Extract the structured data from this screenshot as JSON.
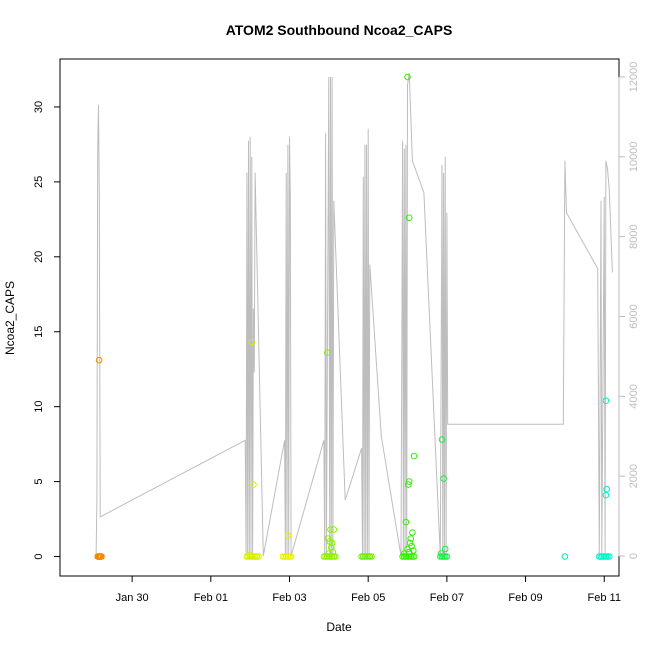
{
  "chart_data": {
    "type": "scatter",
    "title": "ATOM2 Southbound Ncoa2_CAPS",
    "xlabel": "Date",
    "ylabel": "Ncoa2_CAPS",
    "xlim": [
      "2017-01-28T04:00",
      "2017-02-11T09:00"
    ],
    "ylim": [
      -1.3,
      33.2
    ],
    "y2lim": [
      -500,
      12450
    ],
    "x_ticks": [
      {
        "date": "2017-01-30",
        "label": "Jan 30"
      },
      {
        "date": "2017-02-01",
        "label": "Feb 01"
      },
      {
        "date": "2017-02-03",
        "label": "Feb 03"
      },
      {
        "date": "2017-02-05",
        "label": "Feb 05"
      },
      {
        "date": "2017-02-07",
        "label": "Feb 07"
      },
      {
        "date": "2017-02-09",
        "label": "Feb 09"
      },
      {
        "date": "2017-02-11",
        "label": "Feb 11"
      }
    ],
    "y_ticks": [
      0,
      5,
      10,
      15,
      20,
      25,
      30
    ],
    "y2_ticks": [
      0,
      2000,
      4000,
      6000,
      8000,
      10000,
      12000
    ],
    "colors": {
      "secondary_line": "#bdbdbd",
      "jan29": "#f08c00",
      "feb01": "#d6f000",
      "feb02": "#e8f000",
      "feb03": "#8cf000",
      "feb04": "#6cf000",
      "feb05": "#33f000",
      "feb06": "#18f040",
      "feb10": "#00f0a0",
      "feb11": "#00f0c8"
    },
    "secondary_series": [
      [
        "2017-01-29T02:00",
        0
      ],
      [
        "2017-01-29T02:30",
        1400
      ],
      [
        "2017-01-29T03:00",
        10200
      ],
      [
        "2017-01-29T03:30",
        11300
      ],
      [
        "2017-01-29T04:00",
        9000
      ],
      [
        "2017-01-29T04:30",
        980
      ],
      [
        "2017-02-01T21:00",
        2900
      ],
      [
        "2017-02-01T21:30",
        0
      ],
      [
        "2017-02-01T22:00",
        9600
      ],
      [
        "2017-02-01T22:30",
        0
      ],
      [
        "2017-02-01T23:00",
        10400
      ],
      [
        "2017-02-01T23:30",
        0
      ],
      [
        "2017-02-02T00:00",
        10500
      ],
      [
        "2017-02-02T00:30",
        0
      ],
      [
        "2017-02-02T01:00",
        10000
      ],
      [
        "2017-02-02T01:30",
        0
      ],
      [
        "2017-02-02T02:00",
        6200
      ],
      [
        "2017-02-02T02:30",
        4600
      ],
      [
        "2017-02-02T03:00",
        9600
      ],
      [
        "2017-02-02T08:00",
        0
      ],
      [
        "2017-02-02T21:00",
        2900
      ],
      [
        "2017-02-02T21:30",
        0
      ],
      [
        "2017-02-02T22:00",
        9600
      ],
      [
        "2017-02-02T22:30",
        0
      ],
      [
        "2017-02-02T23:00",
        10300
      ],
      [
        "2017-02-02T23:30",
        0
      ],
      [
        "2017-02-03T00:00",
        10500
      ],
      [
        "2017-02-03T00:30",
        9000
      ],
      [
        "2017-02-03T01:00",
        0
      ],
      [
        "2017-02-03T21:00",
        2900
      ],
      [
        "2017-02-03T21:30",
        0
      ],
      [
        "2017-02-03T22:00",
        10600
      ],
      [
        "2017-02-03T22:30",
        0
      ],
      [
        "2017-02-04T00:00",
        12000
      ],
      [
        "2017-02-04T00:30",
        0
      ],
      [
        "2017-02-04T01:00",
        12000
      ],
      [
        "2017-02-04T01:30",
        0
      ],
      [
        "2017-02-04T02:00",
        12000
      ],
      [
        "2017-02-04T02:30",
        0
      ],
      [
        "2017-02-04T03:00",
        8900
      ],
      [
        "2017-02-04T10:00",
        1400
      ],
      [
        "2017-02-04T20:00",
        2700
      ],
      [
        "2017-02-04T20:30",
        0
      ],
      [
        "2017-02-04T21:00",
        9500
      ],
      [
        "2017-02-04T21:30",
        0
      ],
      [
        "2017-02-04T22:00",
        10300
      ],
      [
        "2017-02-04T22:30",
        0
      ],
      [
        "2017-02-04T23:00",
        10300
      ],
      [
        "2017-02-04T23:30",
        0
      ],
      [
        "2017-02-05T00:00",
        10700
      ],
      [
        "2017-02-05T00:30",
        0
      ],
      [
        "2017-02-05T01:00",
        7300
      ],
      [
        "2017-02-05T08:00",
        3000
      ],
      [
        "2017-02-05T20:00",
        0
      ],
      [
        "2017-02-05T21:00",
        10400
      ],
      [
        "2017-02-05T21:30",
        0
      ],
      [
        "2017-02-05T22:00",
        10200
      ],
      [
        "2017-02-05T22:30",
        0
      ],
      [
        "2017-02-05T23:00",
        10300
      ],
      [
        "2017-02-05T23:30",
        0
      ],
      [
        "2017-02-06T00:00",
        11800
      ],
      [
        "2017-02-06T01:00",
        12100
      ],
      [
        "2017-02-06T02:00",
        11000
      ],
      [
        "2017-02-06T03:00",
        9900
      ],
      [
        "2017-02-06T10:00",
        9100
      ],
      [
        "2017-02-06T20:00",
        0
      ],
      [
        "2017-02-06T21:00",
        9800
      ],
      [
        "2017-02-06T21:30",
        0
      ],
      [
        "2017-02-06T22:00",
        9600
      ],
      [
        "2017-02-06T22:30",
        0
      ],
      [
        "2017-02-06T23:00",
        10000
      ],
      [
        "2017-02-06T23:30",
        0
      ],
      [
        "2017-02-07T00:00",
        8600
      ],
      [
        "2017-02-07T00:30",
        3300
      ],
      [
        "2017-02-09T23:00",
        3300
      ],
      [
        "2017-02-10T00:00",
        9900
      ],
      [
        "2017-02-10T01:00",
        8600
      ],
      [
        "2017-02-10T20:00",
        7200
      ],
      [
        "2017-02-10T21:00",
        0
      ],
      [
        "2017-02-10T22:00",
        8900
      ],
      [
        "2017-02-10T22:30",
        0
      ],
      [
        "2017-02-11T00:00",
        9000
      ],
      [
        "2017-02-11T00:30",
        0
      ],
      [
        "2017-02-11T01:00",
        9900
      ],
      [
        "2017-02-11T02:00",
        9700
      ],
      [
        "2017-02-11T03:00",
        9200
      ],
      [
        "2017-02-11T05:00",
        7100
      ]
    ],
    "series": [
      {
        "color_key": "jan29",
        "points": [
          [
            "2017-01-29T03:00",
            0
          ],
          [
            "2017-01-29T03:20",
            0
          ],
          [
            "2017-01-29T03:40",
            0
          ],
          [
            "2017-01-29T04:00",
            0
          ],
          [
            "2017-01-29T04:20",
            0
          ],
          [
            "2017-01-29T04:40",
            0
          ],
          [
            "2017-01-29T05:00",
            0
          ],
          [
            "2017-01-29T05:20",
            0
          ],
          [
            "2017-01-29T03:50",
            13.1
          ]
        ]
      },
      {
        "color_key": "feb01",
        "points": [
          [
            "2017-02-01T22:00",
            0
          ],
          [
            "2017-02-01T23:00",
            0
          ],
          [
            "2017-02-02T00:00",
            0
          ],
          [
            "2017-02-02T01:00",
            0
          ],
          [
            "2017-02-02T02:00",
            0
          ],
          [
            "2017-02-02T03:00",
            0
          ],
          [
            "2017-02-02T04:00",
            0
          ],
          [
            "2017-02-02T05:00",
            0
          ],
          [
            "2017-02-02T01:00",
            14.3
          ],
          [
            "2017-02-02T02:00",
            4.8
          ],
          [
            "2017-02-02T00:00",
            0.1
          ]
        ]
      },
      {
        "color_key": "feb02",
        "points": [
          [
            "2017-02-02T20:00",
            0
          ],
          [
            "2017-02-02T21:00",
            0
          ],
          [
            "2017-02-02T22:00",
            0
          ],
          [
            "2017-02-02T23:00",
            0
          ],
          [
            "2017-02-03T00:00",
            0
          ],
          [
            "2017-02-03T01:00",
            0
          ],
          [
            "2017-02-02T23:00",
            1.4
          ]
        ]
      },
      {
        "color_key": "feb03",
        "points": [
          [
            "2017-02-03T21:00",
            0
          ],
          [
            "2017-02-03T22:00",
            0
          ],
          [
            "2017-02-03T23:00",
            0
          ],
          [
            "2017-02-04T00:00",
            0
          ],
          [
            "2017-02-04T01:00",
            0
          ],
          [
            "2017-02-04T02:00",
            0
          ],
          [
            "2017-02-04T03:00",
            0
          ],
          [
            "2017-02-04T04:00",
            0
          ],
          [
            "2017-02-03T23:00",
            13.6
          ],
          [
            "2017-02-04T01:00",
            1.8
          ],
          [
            "2017-02-04T03:00",
            1.8
          ],
          [
            "2017-02-03T23:30",
            1.2
          ],
          [
            "2017-02-04T00:30",
            1.0
          ],
          [
            "2017-02-04T02:00",
            0.9
          ],
          [
            "2017-02-04T01:30",
            0.6
          ],
          [
            "2017-02-04T02:30",
            0.3
          ],
          [
            "2017-02-04T00:00",
            0.2
          ]
        ]
      },
      {
        "color_key": "feb04",
        "points": [
          [
            "2017-02-04T20:00",
            0
          ],
          [
            "2017-02-04T21:00",
            0
          ],
          [
            "2017-02-04T22:00",
            0
          ],
          [
            "2017-02-04T23:00",
            0
          ],
          [
            "2017-02-05T00:00",
            0
          ],
          [
            "2017-02-05T01:00",
            0
          ],
          [
            "2017-02-05T02:00",
            0
          ]
        ]
      },
      {
        "color_key": "feb05",
        "points": [
          [
            "2017-02-05T21:00",
            0
          ],
          [
            "2017-02-05T22:00",
            0
          ],
          [
            "2017-02-05T23:00",
            0
          ],
          [
            "2017-02-06T00:00",
            0
          ],
          [
            "2017-02-06T01:00",
            0
          ],
          [
            "2017-02-06T02:00",
            0
          ],
          [
            "2017-02-06T03:00",
            0
          ],
          [
            "2017-02-06T04:00",
            0
          ],
          [
            "2017-02-06T00:00",
            32.0
          ],
          [
            "2017-02-06T01:00",
            22.6
          ],
          [
            "2017-02-06T04:00",
            6.7
          ],
          [
            "2017-02-06T01:00",
            5.0
          ],
          [
            "2017-02-06T00:30",
            4.8
          ],
          [
            "2017-02-05T23:00",
            2.3
          ],
          [
            "2017-02-06T03:00",
            1.6
          ],
          [
            "2017-02-06T02:00",
            1.2
          ],
          [
            "2017-02-06T01:30",
            0.9
          ],
          [
            "2017-02-06T02:30",
            0.7
          ],
          [
            "2017-02-06T00:00",
            0.5
          ],
          [
            "2017-02-06T03:30",
            0.4
          ],
          [
            "2017-02-06T01:00",
            0.3
          ],
          [
            "2017-02-05T22:00",
            0.2
          ]
        ]
      },
      {
        "color_key": "feb06",
        "points": [
          [
            "2017-02-06T20:00",
            0
          ],
          [
            "2017-02-06T21:00",
            0
          ],
          [
            "2017-02-06T22:00",
            0
          ],
          [
            "2017-02-06T23:00",
            0
          ],
          [
            "2017-02-07T00:00",
            0
          ],
          [
            "2017-02-06T21:00",
            7.8
          ],
          [
            "2017-02-06T22:00",
            5.2
          ],
          [
            "2017-02-06T23:00",
            0.5
          ],
          [
            "2017-02-06T20:30",
            0.2
          ]
        ]
      },
      {
        "color_key": "feb10",
        "points": [
          [
            "2017-02-10T00:00",
            0
          ]
        ]
      },
      {
        "color_key": "feb11",
        "points": [
          [
            "2017-02-10T21:00",
            0
          ],
          [
            "2017-02-10T22:00",
            0
          ],
          [
            "2017-02-10T23:00",
            0
          ],
          [
            "2017-02-11T00:00",
            0
          ],
          [
            "2017-02-11T01:00",
            0
          ],
          [
            "2017-02-11T02:00",
            0
          ],
          [
            "2017-02-11T03:00",
            0
          ],
          [
            "2017-02-11T01:00",
            10.4
          ],
          [
            "2017-02-11T01:30",
            4.5
          ],
          [
            "2017-02-11T01:00",
            4.1
          ]
        ]
      }
    ]
  }
}
